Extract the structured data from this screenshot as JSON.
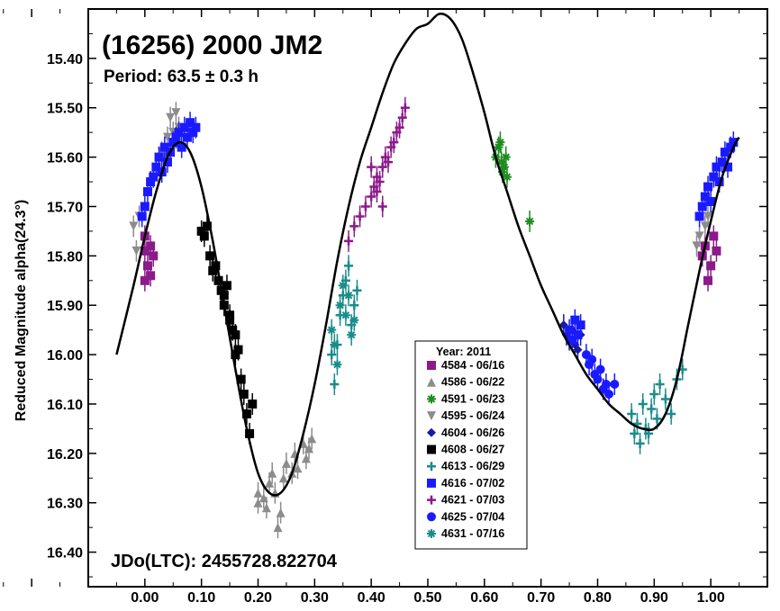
{
  "chart_data": {
    "type": "scatter",
    "title": "(16256) 2000 JM2",
    "subtitle": "Period: 63.5 ± 0.3 h",
    "annotation": "JDo(LTC): 2455728.822704",
    "xlabel": "",
    "ylabel": "Reduced Magnitude alpha(24.3°)",
    "xlim": [
      -0.1,
      1.1
    ],
    "ylim": [
      15.3,
      16.47
    ],
    "y_inverted": true,
    "x_ticks": [
      "0.00",
      "0.10",
      "0.20",
      "0.30",
      "0.40",
      "0.50",
      "0.60",
      "0.70",
      "0.80",
      "0.90",
      "1.00"
    ],
    "y_ticks": [
      "15.40",
      "15.50",
      "15.60",
      "15.70",
      "15.80",
      "15.90",
      "16.00",
      "16.10",
      "16.20",
      "16.30",
      "16.40"
    ],
    "grid": false,
    "legend": {
      "title": "Year: 2011",
      "placement": "lower-center",
      "entries": [
        {
          "label": "4584 - 06/16",
          "color": "#8b1a8b",
          "marker": "square"
        },
        {
          "label": "4586 - 06/22",
          "color": "#8c8c8c",
          "marker": "triangle-up"
        },
        {
          "label": "4591 - 06/23",
          "color": "#1e8c1e",
          "marker": "asterisk"
        },
        {
          "label": "4595 - 06/24",
          "color": "#8c8c8c",
          "marker": "triangle-down"
        },
        {
          "label": "4604 - 06/26",
          "color": "#1a1aa0",
          "marker": "diamond"
        },
        {
          "label": "4608 - 06/27",
          "color": "#000000",
          "marker": "square"
        },
        {
          "label": "4613 - 06/29",
          "color": "#1a8c8c",
          "marker": "plus"
        },
        {
          "label": "4616 - 07/02",
          "color": "#1a1aff",
          "marker": "square"
        },
        {
          "label": "4621 - 07/03",
          "color": "#8b1a8b",
          "marker": "plus"
        },
        {
          "label": "4625 - 07/04",
          "color": "#1a1aff",
          "marker": "circle"
        },
        {
          "label": "4631 - 07/16",
          "color": "#1a8c8c",
          "marker": "asterisk"
        }
      ]
    },
    "fit_curve": {
      "x": [
        -0.05,
        -0.02,
        0.0,
        0.02,
        0.04,
        0.06,
        0.08,
        0.1,
        0.12,
        0.14,
        0.16,
        0.18,
        0.2,
        0.22,
        0.24,
        0.26,
        0.28,
        0.3,
        0.32,
        0.34,
        0.36,
        0.38,
        0.4,
        0.42,
        0.44,
        0.46,
        0.48,
        0.5,
        0.52,
        0.54,
        0.56,
        0.58,
        0.6,
        0.62,
        0.64,
        0.66,
        0.68,
        0.7,
        0.72,
        0.74,
        0.76,
        0.78,
        0.8,
        0.82,
        0.84,
        0.86,
        0.88,
        0.9,
        0.92,
        0.94,
        0.96,
        0.98,
        1.0,
        1.02,
        1.04,
        1.05
      ],
      "y": [
        16.0,
        15.86,
        15.76,
        15.67,
        15.6,
        15.57,
        15.59,
        15.66,
        15.77,
        15.9,
        16.03,
        16.15,
        16.24,
        16.28,
        16.28,
        16.24,
        16.16,
        16.06,
        15.94,
        15.81,
        15.7,
        15.61,
        15.54,
        15.47,
        15.41,
        15.37,
        15.34,
        15.33,
        15.31,
        15.32,
        15.36,
        15.43,
        15.51,
        15.6,
        15.67,
        15.74,
        15.8,
        15.86,
        15.91,
        15.96,
        16.0,
        16.04,
        16.07,
        16.1,
        16.12,
        16.14,
        16.15,
        16.15,
        16.12,
        16.05,
        15.94,
        15.83,
        15.73,
        15.64,
        15.58,
        15.56
      ]
    },
    "series": [
      {
        "name": "4584 - 06/16",
        "x": [
          0.0,
          0.005,
          0.01,
          0.0,
          0.015,
          0.0,
          0.01,
          0.99,
          1.0,
          1.01,
          0.995,
          1.005,
          0.985
        ],
        "y": [
          15.79,
          15.82,
          15.78,
          15.85,
          15.8,
          15.76,
          15.84,
          15.78,
          15.82,
          15.79,
          15.85,
          15.76,
          15.8
        ]
      },
      {
        "name": "4586 - 06/22",
        "x": [
          0.2,
          0.21,
          0.215,
          0.22,
          0.23,
          0.24,
          0.245,
          0.25,
          0.26,
          0.265,
          0.27,
          0.28,
          0.285,
          0.29,
          0.295,
          0.2,
          0.225,
          0.235
        ],
        "y": [
          16.3,
          16.29,
          16.31,
          16.26,
          16.28,
          16.32,
          16.25,
          16.22,
          16.24,
          16.2,
          16.23,
          16.18,
          16.21,
          16.19,
          16.17,
          16.28,
          16.24,
          16.35
        ]
      },
      {
        "name": "4591 - 06/23",
        "x": [
          0.62,
          0.625,
          0.63,
          0.635,
          0.64,
          0.628,
          0.632,
          0.638,
          0.68
        ],
        "y": [
          15.6,
          15.58,
          15.61,
          15.62,
          15.64,
          15.57,
          15.63,
          15.6,
          15.73
        ]
      },
      {
        "name": "4595 - 06/24",
        "x": [
          0.04,
          0.045,
          0.05,
          0.055,
          0.06,
          0.035,
          -0.02,
          -0.015,
          -0.01,
          0.03,
          0.975,
          0.98,
          0.99,
          0.995
        ],
        "y": [
          15.56,
          15.52,
          15.55,
          15.51,
          15.54,
          15.6,
          15.74,
          15.79,
          15.72,
          15.59,
          15.78,
          15.76,
          15.74,
          15.72
        ]
      },
      {
        "name": "4604 - 06/26",
        "x": [
          0.74,
          0.745,
          0.75,
          0.755,
          0.76,
          0.765,
          0.77
        ],
        "y": [
          15.94,
          15.96,
          15.97,
          15.95,
          15.98,
          15.99,
          15.96
        ]
      },
      {
        "name": "4608 - 06/27",
        "x": [
          0.1,
          0.105,
          0.11,
          0.115,
          0.12,
          0.125,
          0.13,
          0.135,
          0.14,
          0.145,
          0.15,
          0.155,
          0.16,
          0.165,
          0.17,
          0.175,
          0.18,
          0.185,
          0.19,
          0.14,
          0.15,
          0.16
        ],
        "y": [
          15.75,
          15.76,
          15.74,
          15.8,
          15.83,
          15.82,
          15.85,
          15.87,
          15.88,
          15.86,
          15.92,
          15.95,
          15.96,
          15.99,
          16.05,
          16.08,
          16.12,
          16.16,
          16.1,
          15.9,
          15.93,
          16.0
        ]
      },
      {
        "name": "4613 - 06/29",
        "x": [
          0.34,
          0.345,
          0.35,
          0.355,
          0.36,
          0.365,
          0.37,
          0.375,
          0.33,
          0.335,
          0.86,
          0.865,
          0.87,
          0.875,
          0.88,
          0.885,
          0.89,
          0.895,
          0.9,
          0.905,
          0.91,
          0.92,
          0.93,
          0.94,
          0.95
        ],
        "y": [
          15.98,
          15.92,
          15.88,
          15.85,
          15.82,
          15.94,
          15.9,
          15.87,
          16.0,
          16.06,
          16.12,
          16.16,
          16.14,
          16.18,
          16.1,
          16.15,
          16.16,
          16.11,
          16.08,
          16.13,
          16.06,
          16.09,
          16.12,
          16.05,
          16.03
        ]
      },
      {
        "name": "4616 - 07/02",
        "x": [
          0.0,
          -0.005,
          0.005,
          0.01,
          0.015,
          0.02,
          0.025,
          0.03,
          0.035,
          0.04,
          0.045,
          0.05,
          0.055,
          0.06,
          0.065,
          0.07,
          0.075,
          0.08,
          0.085,
          0.09,
          0.75,
          0.755,
          0.76,
          0.765,
          0.77,
          0.98,
          0.985,
          0.99,
          0.995,
          1.0,
          1.005,
          1.01,
          1.015,
          1.02,
          1.025,
          1.03,
          1.035,
          1.04
        ],
        "y": [
          15.7,
          15.72,
          15.67,
          15.65,
          15.64,
          15.62,
          15.6,
          15.63,
          15.58,
          15.61,
          15.59,
          15.57,
          15.56,
          15.55,
          15.58,
          15.54,
          15.56,
          15.53,
          15.55,
          15.54,
          15.95,
          15.97,
          15.93,
          15.96,
          15.94,
          15.72,
          15.7,
          15.68,
          15.66,
          15.69,
          15.64,
          15.62,
          15.65,
          15.61,
          15.59,
          15.62,
          15.58,
          15.57
        ]
      },
      {
        "name": "4621 - 07/03",
        "x": [
          0.36,
          0.37,
          0.38,
          0.39,
          0.4,
          0.405,
          0.41,
          0.415,
          0.42,
          0.425,
          0.43,
          0.435,
          0.44,
          0.445,
          0.45,
          0.455,
          0.46,
          0.4,
          0.41,
          0.42
        ],
        "y": [
          15.77,
          15.74,
          15.72,
          15.7,
          15.68,
          15.66,
          15.64,
          15.65,
          15.62,
          15.6,
          15.61,
          15.58,
          15.57,
          15.55,
          15.54,
          15.52,
          15.5,
          15.62,
          15.67,
          15.7
        ]
      },
      {
        "name": "4625 - 07/04",
        "x": [
          0.78,
          0.785,
          0.79,
          0.795,
          0.8,
          0.805,
          0.81,
          0.815,
          0.82,
          0.83
        ],
        "y": [
          16.0,
          16.02,
          16.01,
          16.04,
          16.05,
          16.03,
          16.07,
          16.06,
          16.08,
          16.06
        ]
      },
      {
        "name": "4631 - 07/16",
        "x": [
          0.33,
          0.335,
          0.34,
          0.345,
          0.35,
          0.355,
          0.36,
          0.365,
          0.37
        ],
        "y": [
          15.95,
          15.98,
          16.02,
          15.9,
          15.86,
          15.92,
          15.88,
          15.96,
          15.93
        ]
      }
    ]
  }
}
